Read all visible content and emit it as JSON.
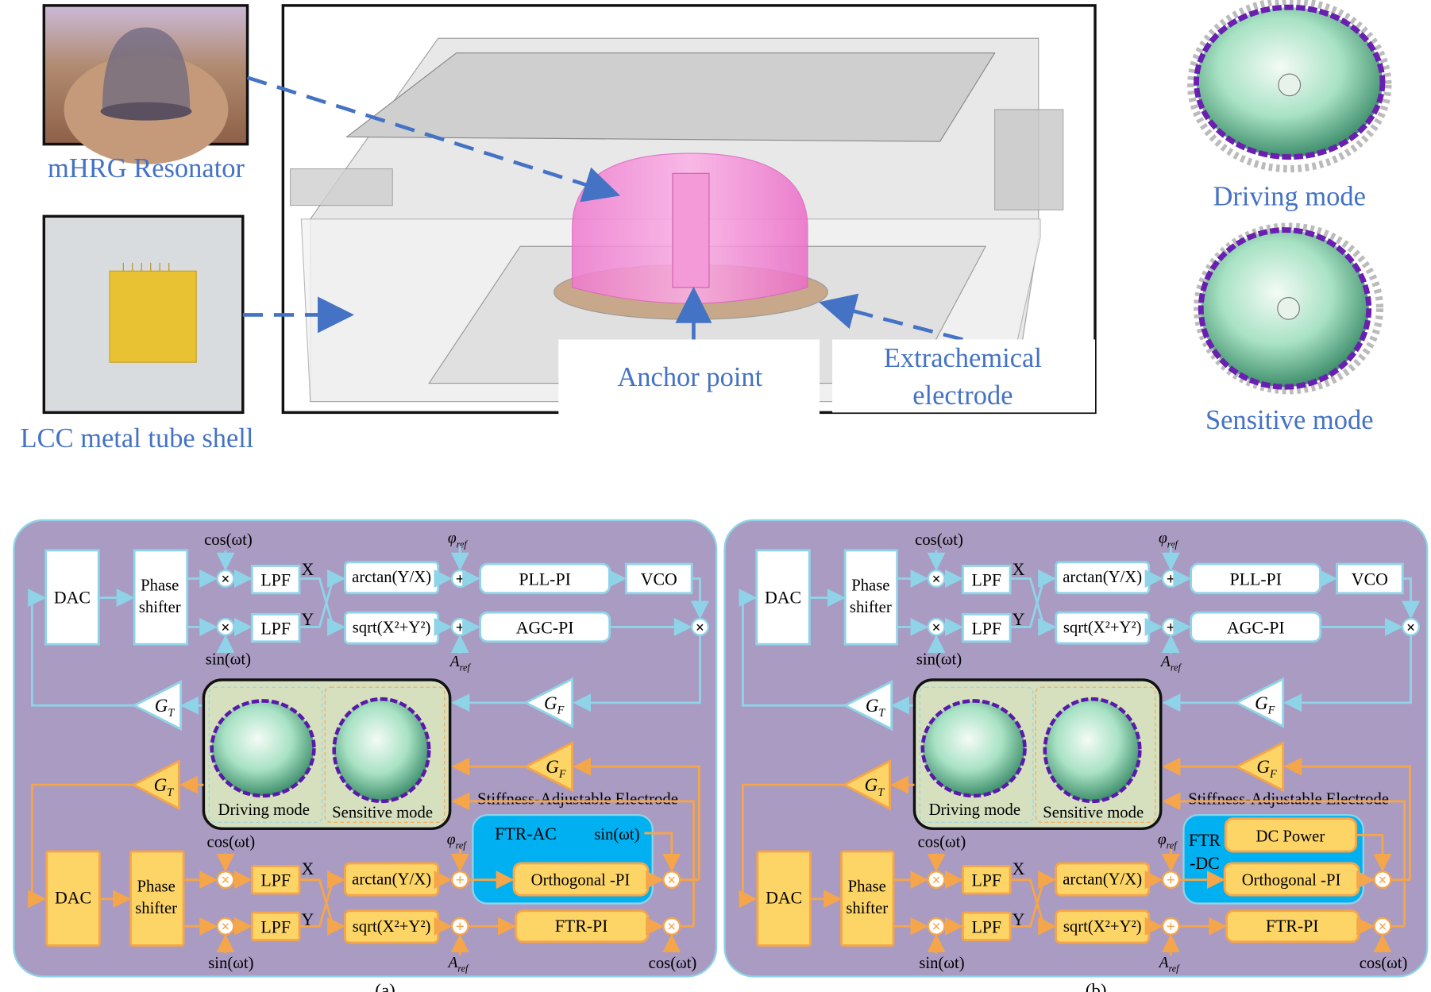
{
  "top": {
    "resonator_label": "mHRG Resonator",
    "shell_label": "LCC metal tube shell",
    "anchor_label": "Anchor point",
    "electrode_label_1": "Extrachemical",
    "electrode_label_2": "electrode",
    "driving_mode_label": "Driving mode",
    "sensitive_mode_label": "Sensitive mode"
  },
  "colors": {
    "panel_bg": "#a99bc1",
    "blue_loop": "#8fd3e8",
    "orange_loop": "#f5a54a",
    "orange_block": "#fdd567",
    "ftr_box": "#00b0f0",
    "label_blue": "#4472c4",
    "resonator_pink": "#f07ad0"
  },
  "panels": [
    {
      "caption": "(a)",
      "dac": "DAC",
      "phase_1": "Phase",
      "phase_2": "shifter",
      "cos": "cos(ωt)",
      "sin": "sin(ωt)",
      "lpf": "LPF",
      "x": "X",
      "y": "Y",
      "arctan": "arctan(Y/X)",
      "sqrt": "sqrt(X²+Y²)",
      "phi_ref": {
        "main": "φ",
        "sub": "ref"
      },
      "a_ref": {
        "main": "A",
        "sub": "ref"
      },
      "pll": "PLL-PI",
      "agc": "AGC-PI",
      "vco": "VCO",
      "gf": {
        "main": "G",
        "sub": "F"
      },
      "gt": {
        "main": "G",
        "sub": "T"
      },
      "driving": "Driving mode",
      "sensitive": "Sensitive mode",
      "stiffness": "Stiffness-Adjustable Electrode",
      "ftr_title_1": "FTR-AC",
      "ftr_title_2": "",
      "ftr_top": "sin(ωt)",
      "orth": "Orthogonal -PI",
      "ftr_pi": "FTR-PI",
      "cos_bottom": "cos(ωt)"
    },
    {
      "caption": "(b)",
      "dac": "DAC",
      "phase_1": "Phase",
      "phase_2": "shifter",
      "cos": "cos(ωt)",
      "sin": "sin(ωt)",
      "lpf": "LPF",
      "x": "X",
      "y": "Y",
      "arctan": "arctan(Y/X)",
      "sqrt": "sqrt(X²+Y²)",
      "phi_ref": {
        "main": "φ",
        "sub": "ref"
      },
      "a_ref": {
        "main": "A",
        "sub": "ref"
      },
      "pll": "PLL-PI",
      "agc": "AGC-PI",
      "vco": "VCO",
      "gf": {
        "main": "G",
        "sub": "F"
      },
      "gt": {
        "main": "G",
        "sub": "T"
      },
      "driving": "Driving mode",
      "sensitive": "Sensitive mode",
      "stiffness": "Stiffness-Adjustable Electrode",
      "ftr_title_1": "FTR",
      "ftr_title_2": "-DC",
      "ftr_top": "DC Power",
      "orth": "Orthogonal -PI",
      "ftr_pi": "FTR-PI",
      "cos_bottom": "cos(ωt)"
    }
  ]
}
